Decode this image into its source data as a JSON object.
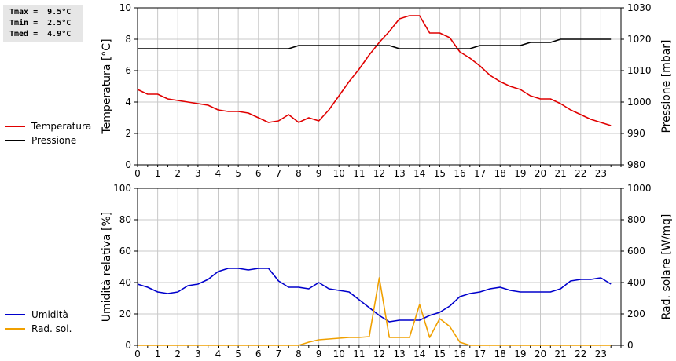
{
  "stats": {
    "tmax": "Tmax =  9.5°C",
    "tmin": "Tmin =  2.5°C",
    "tmed": "Tmed =  4.9°C"
  },
  "legend_top": [
    {
      "label": "Temperatura",
      "color": "#e00000"
    },
    {
      "label": "Pressione",
      "color": "#000000"
    }
  ],
  "legend_bottom": [
    {
      "label": "Umidità",
      "color": "#0000cc"
    },
    {
      "label": "Rad. sol.",
      "color": "#f0a000"
    }
  ],
  "chart_data": [
    {
      "type": "line",
      "xlim": [
        0,
        24
      ],
      "x_ticks": [
        0,
        1,
        2,
        3,
        4,
        5,
        6,
        7,
        8,
        9,
        10,
        11,
        12,
        13,
        14,
        15,
        16,
        17,
        18,
        19,
        20,
        21,
        22,
        23
      ],
      "y_left": {
        "label": "Temperatura [°C]",
        "lim": [
          0,
          10
        ],
        "ticks": [
          0,
          2,
          4,
          6,
          8,
          10
        ]
      },
      "y_right": {
        "label": "Pressione [mbar]",
        "lim": [
          980,
          1030
        ],
        "ticks": [
          980,
          990,
          1000,
          1010,
          1020,
          1030
        ]
      },
      "grid": true,
      "series": [
        {
          "name": "Temperatura",
          "axis": "left",
          "color": "#e00000",
          "x": [
            0,
            0.5,
            1,
            1.5,
            2,
            2.5,
            3,
            3.5,
            4,
            4.5,
            5,
            5.5,
            6,
            6.5,
            7,
            7.5,
            8,
            8.5,
            9,
            9.5,
            10,
            10.5,
            11,
            11.5,
            12,
            12.5,
            13,
            13.5,
            14,
            14.5,
            15,
            15.5,
            16,
            16.5,
            17,
            17.5,
            18,
            18.5,
            19,
            19.5,
            20,
            20.5,
            21,
            21.5,
            22,
            22.5,
            23,
            23.5
          ],
          "y": [
            4.8,
            4.5,
            4.5,
            4.2,
            4.1,
            4.0,
            3.9,
            3.8,
            3.5,
            3.4,
            3.4,
            3.3,
            3.0,
            2.7,
            2.8,
            3.2,
            2.7,
            3.0,
            2.8,
            3.5,
            4.4,
            5.3,
            6.1,
            7.0,
            7.8,
            8.5,
            9.3,
            9.5,
            9.5,
            8.4,
            8.4,
            8.1,
            7.2,
            6.8,
            6.3,
            5.7,
            5.3,
            5.0,
            4.8,
            4.4,
            4.2,
            4.2,
            3.9,
            3.5,
            3.2,
            2.9,
            2.7,
            2.5
          ]
        },
        {
          "name": "Pressione",
          "axis": "right",
          "color": "#000000",
          "x": [
            0,
            7.5,
            8,
            12.5,
            13,
            16,
            16.5,
            17,
            19,
            19.5,
            20.5,
            21,
            23.5
          ],
          "y": [
            1017,
            1017,
            1018,
            1018,
            1017,
            1017,
            1017,
            1018,
            1018,
            1019,
            1019,
            1020,
            1020
          ]
        }
      ]
    },
    {
      "type": "line",
      "xlim": [
        0,
        24
      ],
      "x_ticks": [
        0,
        1,
        2,
        3,
        4,
        5,
        6,
        7,
        8,
        9,
        10,
        11,
        12,
        13,
        14,
        15,
        16,
        17,
        18,
        19,
        20,
        21,
        22,
        23
      ],
      "y_left": {
        "label": "Umidità relativa [%]",
        "lim": [
          0,
          100
        ],
        "ticks": [
          0,
          20,
          40,
          60,
          80,
          100
        ]
      },
      "y_right": {
        "label": "Rad. solare [W/mq]",
        "lim": [
          0,
          1000
        ],
        "ticks": [
          0,
          200,
          400,
          600,
          800,
          1000
        ]
      },
      "grid": true,
      "series": [
        {
          "name": "Umidità",
          "axis": "left",
          "color": "#0000cc",
          "x": [
            0,
            0.5,
            1,
            1.5,
            2,
            2.5,
            3,
            3.5,
            4,
            4.5,
            5,
            5.5,
            6,
            6.5,
            7,
            7.5,
            8,
            8.5,
            9,
            9.5,
            10,
            10.5,
            11,
            11.5,
            12,
            12.5,
            13,
            13.5,
            14,
            14.5,
            15,
            15.5,
            16,
            16.5,
            17,
            17.5,
            18,
            18.5,
            19,
            19.5,
            20,
            20.5,
            21,
            21.5,
            22,
            22.5,
            23,
            23.5
          ],
          "y": [
            39,
            37,
            34,
            33,
            34,
            38,
            39,
            42,
            47,
            49,
            49,
            48,
            49,
            49,
            41,
            37,
            37,
            36,
            40,
            36,
            35,
            34,
            29,
            24,
            19,
            15,
            16,
            16,
            16,
            19,
            21,
            25,
            31,
            33,
            34,
            36,
            37,
            35,
            34,
            34,
            34,
            34,
            36,
            41,
            42,
            42,
            43,
            39
          ]
        },
        {
          "name": "Rad. sol.",
          "axis": "right",
          "color": "#f0a000",
          "x": [
            0,
            7.5,
            8,
            8.5,
            9,
            9.5,
            10,
            10.5,
            11,
            11.5,
            12,
            12.5,
            13,
            13.5,
            14,
            14.5,
            15,
            15.5,
            16,
            16.5,
            23.5
          ],
          "y": [
            0,
            0,
            0,
            20,
            35,
            40,
            45,
            50,
            50,
            55,
            430,
            50,
            50,
            50,
            260,
            50,
            170,
            120,
            20,
            0,
            0
          ]
        }
      ]
    }
  ]
}
